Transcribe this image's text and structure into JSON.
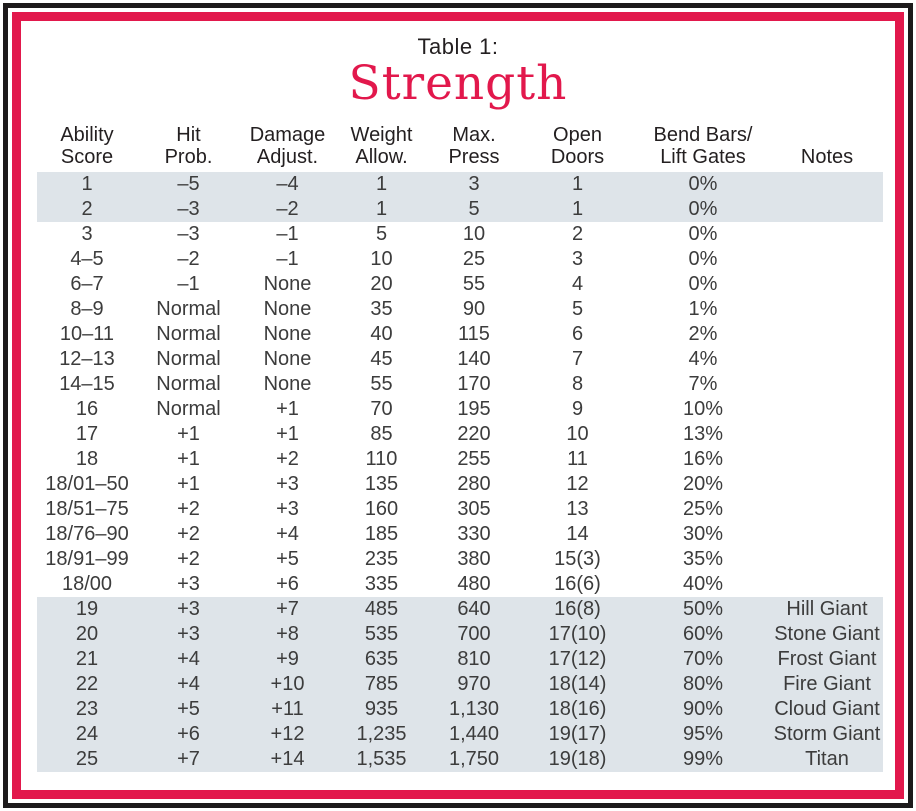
{
  "title": {
    "kicker": "Table 1:",
    "main": "Strength"
  },
  "colors": {
    "accent": "#E2184C",
    "row_shade": "#DEE4E9",
    "ink": "#231F20"
  },
  "table": {
    "headers": [
      {
        "line1": "Ability",
        "line2": "Score"
      },
      {
        "line1": "Hit",
        "line2": "Prob."
      },
      {
        "line1": "Damage",
        "line2": "Adjust."
      },
      {
        "line1": "Weight",
        "line2": "Allow."
      },
      {
        "line1": "Max.",
        "line2": "Press"
      },
      {
        "line1": "Open",
        "line2": "Doors"
      },
      {
        "line1": "Bend Bars/",
        "line2": "Lift Gates"
      },
      {
        "line1": "",
        "line2": "Notes"
      }
    ],
    "rows": [
      {
        "shaded": true,
        "cells": [
          "1",
          "–5",
          "–4",
          "1",
          "3",
          "1",
          "0%",
          ""
        ]
      },
      {
        "shaded": true,
        "cells": [
          "2",
          "–3",
          "–2",
          "1",
          "5",
          "1",
          "0%",
          ""
        ]
      },
      {
        "shaded": false,
        "cells": [
          "3",
          "–3",
          "–1",
          "5",
          "10",
          "2",
          "0%",
          ""
        ]
      },
      {
        "shaded": false,
        "cells": [
          "4–5",
          "–2",
          "–1",
          "10",
          "25",
          "3",
          "0%",
          ""
        ]
      },
      {
        "shaded": false,
        "cells": [
          "6–7",
          "–1",
          "None",
          "20",
          "55",
          "4",
          "0%",
          ""
        ]
      },
      {
        "shaded": false,
        "cells": [
          "8–9",
          "Normal",
          "None",
          "35",
          "90",
          "5",
          "1%",
          ""
        ]
      },
      {
        "shaded": false,
        "cells": [
          "10–11",
          "Normal",
          "None",
          "40",
          "115",
          "6",
          "2%",
          ""
        ]
      },
      {
        "shaded": false,
        "cells": [
          "12–13",
          "Normal",
          "None",
          "45",
          "140",
          "7",
          "4%",
          ""
        ]
      },
      {
        "shaded": false,
        "cells": [
          "14–15",
          "Normal",
          "None",
          "55",
          "170",
          "8",
          "7%",
          ""
        ]
      },
      {
        "shaded": false,
        "cells": [
          "16",
          "Normal",
          "+1",
          "70",
          "195",
          "9",
          "10%",
          ""
        ]
      },
      {
        "shaded": false,
        "cells": [
          "17",
          "+1",
          "+1",
          "85",
          "220",
          "10",
          "13%",
          ""
        ]
      },
      {
        "shaded": false,
        "cells": [
          "18",
          "+1",
          "+2",
          "110",
          "255",
          "11",
          "16%",
          ""
        ]
      },
      {
        "shaded": false,
        "cells": [
          "18/01–50",
          "+1",
          "+3",
          "135",
          "280",
          "12",
          "20%",
          ""
        ]
      },
      {
        "shaded": false,
        "cells": [
          "18/51–75",
          "+2",
          "+3",
          "160",
          "305",
          "13",
          "25%",
          ""
        ]
      },
      {
        "shaded": false,
        "cells": [
          "18/76–90",
          "+2",
          "+4",
          "185",
          "330",
          "14",
          "30%",
          ""
        ]
      },
      {
        "shaded": false,
        "cells": [
          "18/91–99",
          "+2",
          "+5",
          "235",
          "380",
          "15(3)",
          "35%",
          ""
        ]
      },
      {
        "shaded": false,
        "cells": [
          "18/00",
          "+3",
          "+6",
          "335",
          "480",
          "16(6)",
          "40%",
          ""
        ]
      },
      {
        "shaded": true,
        "cells": [
          "19",
          "+3",
          "+7",
          "485",
          "640",
          "16(8)",
          "50%",
          "Hill Giant"
        ]
      },
      {
        "shaded": true,
        "cells": [
          "20",
          "+3",
          "+8",
          "535",
          "700",
          "17(10)",
          "60%",
          "Stone Giant"
        ]
      },
      {
        "shaded": true,
        "cells": [
          "21",
          "+4",
          "+9",
          "635",
          "810",
          "17(12)",
          "70%",
          "Frost Giant"
        ]
      },
      {
        "shaded": true,
        "cells": [
          "22",
          "+4",
          "+10",
          "785",
          "970",
          "18(14)",
          "80%",
          "Fire Giant"
        ]
      },
      {
        "shaded": true,
        "cells": [
          "23",
          "+5",
          "+11",
          "935",
          "1,130",
          "18(16)",
          "90%",
          "Cloud Giant"
        ]
      },
      {
        "shaded": true,
        "cells": [
          "24",
          "+6",
          "+12",
          "1,235",
          "1,440",
          "19(17)",
          "95%",
          "Storm Giant"
        ]
      },
      {
        "shaded": true,
        "cells": [
          "25",
          "+7",
          "+14",
          "1,535",
          "1,750",
          "19(18)",
          "99%",
          "Titan"
        ]
      }
    ]
  }
}
